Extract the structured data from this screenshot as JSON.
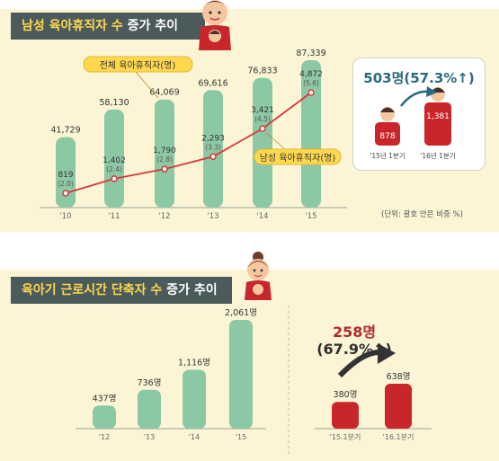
{
  "panel1": {
    "title_highlight": "남성 육아휴직자 수",
    "title_rest": " 증가 추이",
    "legend_total": "전체 육아휴직자(명)",
    "legend_male": "남성 육아휴직자(명)",
    "unit_note": "(단위: 괄호 안은 비중 %)",
    "callout": {
      "headline": "503명(57.3%↑)",
      "values": [
        "878",
        "1,381"
      ],
      "labels": [
        "'15년 1분기",
        "'16년 1분기"
      ]
    }
  },
  "panel2": {
    "title_highlight": "육아기 근로시간 단축자 수",
    "title_rest": " 증가 추이",
    "callout": {
      "headline": "258명",
      "pct": "(67.9%↑)",
      "values": [
        "380명",
        "638명"
      ],
      "labels": [
        "'15.1분기",
        "'16.1분기"
      ]
    }
  },
  "colors": {
    "bar_green": "#8cc8a4",
    "line_red": "#d8363a",
    "bar_red": "#c9262c",
    "title_bg": "#4b5a5b",
    "highlight": "#ffd84d",
    "panel_bg": "#fbf5d6"
  },
  "chart_data": [
    {
      "type": "bar",
      "categories": [
        "'10",
        "'11",
        "'12",
        "'13",
        "'14",
        "'15"
      ],
      "series": [
        {
          "name": "전체 육아휴직자(명)",
          "values": [
            41729,
            58130,
            64069,
            69616,
            76833,
            87339
          ],
          "labels": [
            "41,729",
            "58,130",
            "64,069",
            "69,616",
            "76,833",
            "87,339"
          ]
        },
        {
          "name": "남성 육아휴직자(명)",
          "values": [
            819,
            1402,
            1790,
            2293,
            3421,
            4872
          ],
          "labels": [
            "819",
            "1,402",
            "1,790",
            "2,293",
            "3,421",
            "4,872"
          ],
          "share_labels": [
            "(2.0)",
            "(2.4)",
            "(2.8)",
            "(3.3)",
            "(4.5)",
            "(5.6)"
          ],
          "render": "line"
        }
      ]
    },
    {
      "type": "bar",
      "categories": [
        "'15년 1분기",
        "'16년 1분기"
      ],
      "values": [
        878,
        1381
      ],
      "labels": [
        "878",
        "1,381"
      ]
    },
    {
      "type": "bar",
      "categories": [
        "'12",
        "'13",
        "'14",
        "'15"
      ],
      "values": [
        437,
        736,
        1116,
        2061
      ],
      "labels": [
        "437명",
        "736명",
        "1,116명",
        "2,061명"
      ]
    },
    {
      "type": "bar",
      "categories": [
        "'15.1분기",
        "'16.1분기"
      ],
      "values": [
        380,
        638
      ],
      "labels": [
        "380명",
        "638명"
      ]
    }
  ]
}
